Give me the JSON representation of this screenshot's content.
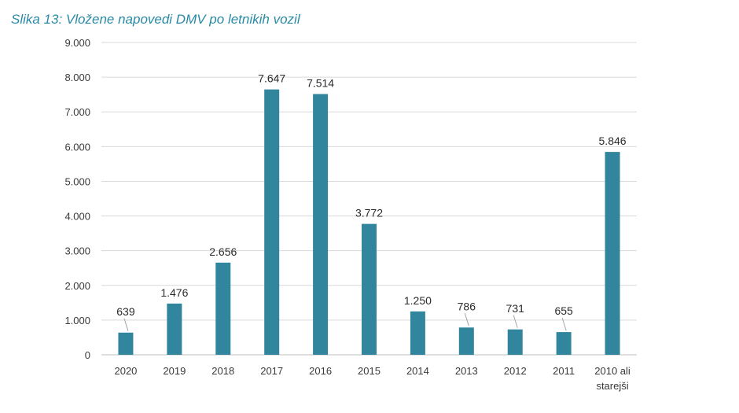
{
  "chart_data": {
    "type": "bar",
    "title": "Slika 13: Vložene napovedi DMV po letnikih vozil",
    "xlabel": "",
    "ylabel": "",
    "categories": [
      "2020",
      "2019",
      "2018",
      "2017",
      "2016",
      "2015",
      "2014",
      "2013",
      "2012",
      "2011",
      "2010 ali starejši"
    ],
    "category_lines": [
      [
        "2020"
      ],
      [
        "2019"
      ],
      [
        "2018"
      ],
      [
        "2017"
      ],
      [
        "2016"
      ],
      [
        "2015"
      ],
      [
        "2014"
      ],
      [
        "2013"
      ],
      [
        "2012"
      ],
      [
        "2011"
      ],
      [
        "2010 ali",
        "starejši"
      ]
    ],
    "values": [
      639,
      1476,
      2656,
      7647,
      7514,
      3772,
      1250,
      786,
      731,
      655,
      5846
    ],
    "data_labels": [
      "639",
      "1.476",
      "2.656",
      "7.647",
      "7.514",
      "3.772",
      "1.250",
      "786",
      "731",
      "655",
      "5.846"
    ],
    "ylim": [
      0,
      9000
    ],
    "y_ticks": [
      0,
      1000,
      2000,
      3000,
      4000,
      5000,
      6000,
      7000,
      8000,
      9000
    ],
    "y_tick_labels": [
      "0",
      "1.000",
      "2.000",
      "3.000",
      "4.000",
      "5.000",
      "6.000",
      "7.000",
      "8.000",
      "9.000"
    ],
    "grid": true,
    "legend": "none",
    "colors": {
      "bar": "#31859c",
      "grid": "#d9d9d9",
      "title": "#2a8aa6"
    }
  }
}
